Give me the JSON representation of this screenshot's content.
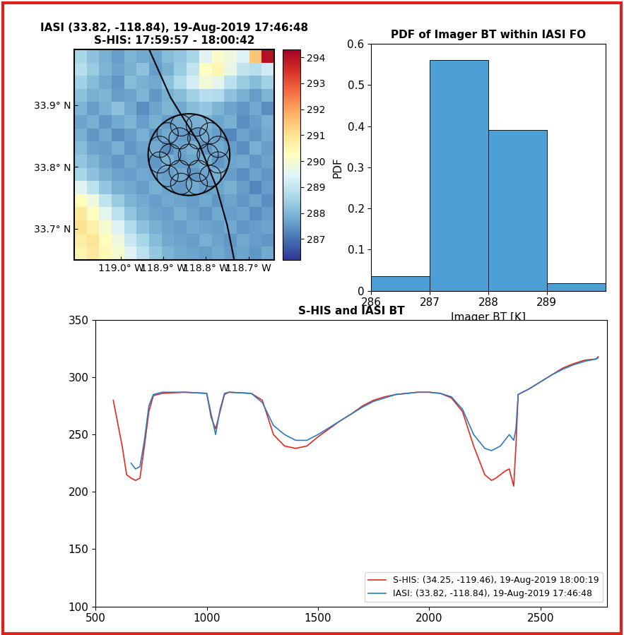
{
  "chart_data": [
    {
      "type": "heatmap",
      "title": "IASI (33.82, -118.84), 19-Aug-2019 17:46:48\nS-HIS: 17:59:57 - 18:00:42",
      "xlim": [
        -119.11,
        -118.64
      ],
      "ylim": [
        33.65,
        33.99
      ],
      "xticks": [
        {
          "value": -119.0,
          "label": "119.0° W"
        },
        {
          "value": -118.9,
          "label": "118.9° W"
        },
        {
          "value": -118.8,
          "label": "118.8° W"
        },
        {
          "value": -118.7,
          "label": "118.7° W"
        }
      ],
      "yticks": [
        {
          "value": 33.7,
          "label": "33.7° N"
        },
        {
          "value": 33.8,
          "label": "33.8° N"
        },
        {
          "value": 33.9,
          "label": "33.9° N"
        }
      ],
      "cells": [
        [
          288.6,
          288.2,
          287.9,
          287.6,
          288.0,
          287.8,
          287.7,
          288.1,
          288.3,
          288.6,
          289.5,
          290.1,
          289.8,
          289.4,
          291.5,
          294.0
        ],
        [
          288.8,
          288.4,
          288.0,
          287.7,
          287.9,
          288.2,
          287.6,
          287.9,
          288.4,
          289.0,
          290.2,
          290.5,
          289.7,
          289.0,
          288.8,
          289.2
        ],
        [
          288.5,
          288.1,
          287.8,
          287.5,
          288.1,
          287.9,
          287.8,
          288.2,
          288.7,
          289.3,
          289.9,
          289.6,
          288.9,
          288.4,
          288.1,
          288.5
        ],
        [
          288.2,
          287.9,
          288.0,
          287.6,
          287.7,
          288.0,
          287.5,
          287.9,
          288.1,
          288.5,
          288.8,
          288.7,
          288.2,
          287.9,
          287.6,
          288.0
        ],
        [
          288.0,
          287.6,
          287.9,
          288.2,
          287.8,
          287.4,
          287.7,
          288.0,
          287.8,
          288.1,
          288.3,
          288.0,
          287.7,
          287.5,
          287.8,
          287.4
        ],
        [
          287.7,
          287.9,
          287.5,
          287.8,
          288.0,
          287.6,
          287.9,
          287.6,
          287.8,
          287.9,
          288.0,
          287.7,
          287.9,
          287.4,
          287.6,
          287.9
        ],
        [
          287.9,
          287.5,
          287.8,
          287.4,
          287.6,
          287.9,
          287.5,
          287.8,
          287.6,
          287.5,
          287.8,
          287.6,
          287.3,
          287.7,
          287.5,
          287.8
        ],
        [
          288.1,
          287.7,
          287.6,
          287.9,
          287.5,
          287.7,
          287.8,
          287.4,
          287.7,
          287.9,
          287.5,
          287.8,
          287.6,
          287.4,
          287.9,
          287.6
        ],
        [
          288.3,
          288.0,
          287.7,
          287.5,
          287.8,
          287.6,
          287.5,
          287.9,
          287.6,
          287.7,
          287.9,
          287.5,
          287.7,
          287.8,
          287.5,
          287.7
        ],
        [
          288.6,
          288.2,
          287.9,
          287.7,
          287.6,
          287.8,
          287.7,
          287.6,
          287.8,
          287.5,
          287.7,
          287.9,
          287.6,
          287.4,
          287.7,
          287.5
        ],
        [
          289.5,
          288.9,
          288.3,
          287.9,
          287.8,
          287.6,
          287.9,
          287.7,
          287.5,
          287.8,
          287.6,
          287.7,
          287.9,
          287.6,
          287.3,
          287.6
        ],
        [
          290.3,
          289.8,
          289.0,
          288.4,
          288.0,
          287.8,
          287.6,
          287.8,
          287.7,
          287.6,
          287.8,
          287.5,
          287.7,
          287.5,
          287.7,
          287.4
        ],
        [
          290.8,
          290.2,
          289.6,
          288.9,
          288.3,
          287.9,
          287.7,
          287.6,
          287.9,
          287.7,
          287.5,
          287.8,
          287.6,
          287.7,
          287.4,
          287.6
        ],
        [
          291.0,
          290.6,
          290.0,
          289.4,
          288.7,
          288.2,
          287.9,
          287.7,
          287.6,
          287.8,
          287.7,
          287.6,
          287.8,
          287.5,
          287.6,
          287.7
        ],
        [
          290.7,
          290.9,
          290.3,
          289.8,
          289.1,
          288.6,
          288.1,
          287.8,
          287.7,
          287.6,
          287.9,
          287.7,
          287.5,
          287.8,
          287.6,
          287.5
        ],
        [
          290.5,
          290.8,
          290.4,
          290.0,
          289.5,
          288.9,
          288.3,
          288.0,
          287.8,
          287.7,
          287.6,
          287.8,
          287.6,
          287.7,
          287.5,
          287.8
        ]
      ],
      "colorbar": {
        "range": [
          286.2,
          294.3
        ],
        "ticks": [
          287,
          288,
          289,
          290,
          291,
          292,
          293,
          294
        ]
      },
      "fov": {
        "lat": 33.82,
        "lon": -118.84,
        "radius": 0.066
      },
      "track": {
        "lat": [
          33.989,
          33.912,
          33.839,
          33.767,
          33.706,
          33.648
        ],
        "lon": [
          -118.933,
          -118.883,
          -118.817,
          -118.775,
          -118.75,
          -118.733
        ]
      }
    },
    {
      "type": "histogram",
      "title": "PDF of Imager BT within IASI FO",
      "x_label": "Imager BT [K]",
      "y_label": "PDF",
      "bins": [
        286,
        287,
        288,
        289,
        290
      ],
      "values": [
        0.035,
        0.56,
        0.39,
        0.018
      ],
      "color": "#4d9fd6",
      "xlim": [
        286,
        290
      ],
      "xticks": [
        286,
        287,
        288,
        289
      ],
      "ylim": [
        0,
        0.6
      ],
      "yticks": [
        0,
        0.1,
        0.2,
        0.3,
        0.4,
        0.5,
        0.6
      ]
    },
    {
      "type": "line",
      "title": "S-HIS and IASI BT",
      "x": [
        580,
        600,
        620,
        640,
        660,
        680,
        700,
        720,
        740,
        760,
        800,
        900,
        1000,
        1020,
        1040,
        1060,
        1080,
        1100,
        1200,
        1250,
        1300,
        1350,
        1400,
        1450,
        1500,
        1550,
        1600,
        1650,
        1700,
        1750,
        1800,
        1850,
        1900,
        1950,
        2000,
        2050,
        2100,
        2150,
        2200,
        2250,
        2280,
        2300,
        2320,
        2340,
        2360,
        2380,
        2390,
        2400,
        2450,
        2500,
        2550,
        2600,
        2650,
        2700,
        2750,
        2760
      ],
      "series": [
        {
          "name": "S-HIS: (34.25, -119.46), 19-Aug-2019 18:00:19",
          "color": "#e3281f",
          "values": [
            280,
            260,
            240,
            215,
            212,
            210,
            212,
            240,
            270,
            284,
            286,
            287,
            286,
            265,
            255,
            270,
            285,
            287,
            286,
            280,
            250,
            240,
            238,
            240,
            248,
            255,
            262,
            268,
            275,
            280,
            283,
            285,
            286,
            287,
            287,
            286,
            282,
            270,
            240,
            215,
            210,
            212,
            215,
            218,
            220,
            205,
            240,
            285,
            290,
            296,
            302,
            308,
            312,
            315,
            316,
            318
          ]
        },
        {
          "name": "IASI: (33.82, -118.84), 19-Aug-2019 17:46:48",
          "color": "#2a7bc0",
          "values": [
            null,
            null,
            null,
            null,
            225,
            220,
            222,
            245,
            275,
            285,
            287,
            287,
            286,
            268,
            250,
            272,
            286,
            287,
            286,
            278,
            258,
            250,
            245,
            245,
            250,
            256,
            262,
            268,
            274,
            279,
            282,
            285,
            286,
            287,
            287,
            286,
            283,
            272,
            250,
            238,
            236,
            238,
            240,
            245,
            250,
            245,
            255,
            285,
            290,
            296,
            302,
            307,
            311,
            314,
            316,
            317
          ]
        }
      ],
      "xlim": [
        500,
        2800
      ],
      "xticks": [
        500,
        1000,
        1500,
        2000,
        2500
      ],
      "ylim": [
        100,
        350
      ],
      "yticks": [
        100,
        150,
        200,
        250,
        300,
        350
      ],
      "legend": "lower right"
    }
  ]
}
